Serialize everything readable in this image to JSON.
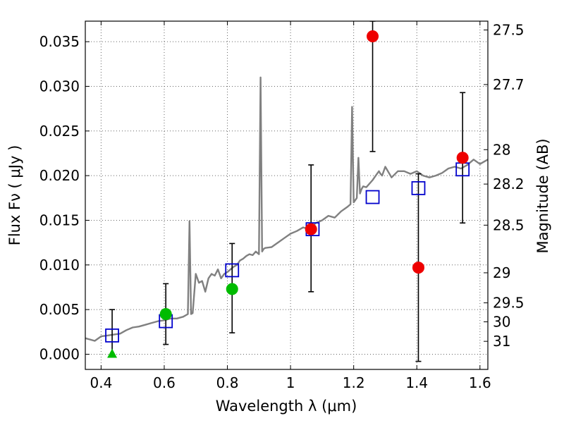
{
  "chart_data": {
    "type": "scatter",
    "title": "",
    "xlabel": "Wavelength  λ (μm)",
    "ylabel": "Flux  Fν  ( μJy )",
    "y2label": "Magnitude (AB)",
    "xlim": [
      0.35,
      1.625
    ],
    "ylim": [
      -0.0017,
      0.0373
    ],
    "grid": true,
    "x_ticks": [
      0.4,
      0.6,
      0.8,
      1.0,
      1.2,
      1.4,
      1.6
    ],
    "x_tick_labels": [
      "0.4",
      "0.6",
      "0.8",
      "1",
      "1.2",
      "1.4",
      "1.6"
    ],
    "y_ticks": [
      0.0,
      0.005,
      0.01,
      0.015,
      0.02,
      0.025,
      0.03,
      0.035
    ],
    "y_tick_labels": [
      "0.000",
      "0.005",
      "0.010",
      "0.015",
      "0.020",
      "0.025",
      "0.030",
      "0.035"
    ],
    "y2_ticks": [
      27.5,
      27.7,
      28,
      28.2,
      28.5,
      29,
      29.5,
      30,
      31
    ],
    "y2_tick_labels": [
      "27.5",
      "27.7",
      "28",
      "28.2",
      "28.5",
      "29",
      "29.5",
      "30",
      "31"
    ],
    "colors": {
      "sed": "#808080",
      "model": "#0000cc",
      "red": "#ee0000",
      "green": "#00bb00",
      "errorbar": "#000000",
      "grid": "#666666"
    },
    "series": [
      {
        "kind": "sed_line",
        "x": [
          0.35,
          0.38,
          0.4,
          0.42,
          0.44,
          0.46,
          0.48,
          0.5,
          0.52,
          0.54,
          0.56,
          0.58,
          0.6,
          0.62,
          0.64,
          0.66,
          0.675,
          0.68,
          0.685,
          0.69,
          0.7,
          0.71,
          0.72,
          0.73,
          0.74,
          0.75,
          0.76,
          0.77,
          0.78,
          0.79,
          0.8,
          0.81,
          0.82,
          0.83,
          0.84,
          0.85,
          0.86,
          0.87,
          0.88,
          0.89,
          0.9,
          0.905,
          0.91,
          0.915,
          0.92,
          0.94,
          0.96,
          0.98,
          1.0,
          1.02,
          1.04,
          1.06,
          1.08,
          1.1,
          1.12,
          1.14,
          1.16,
          1.18,
          1.19,
          1.195,
          1.2,
          1.21,
          1.215,
          1.22,
          1.225,
          1.23,
          1.24,
          1.26,
          1.27,
          1.28,
          1.285,
          1.29,
          1.3,
          1.32,
          1.34,
          1.36,
          1.38,
          1.4,
          1.42,
          1.44,
          1.46,
          1.48,
          1.5,
          1.52,
          1.54,
          1.56,
          1.58,
          1.6,
          1.61,
          1.625
        ],
        "y": [
          0.0018,
          0.0015,
          0.002,
          0.0021,
          0.0022,
          0.0023,
          0.0027,
          0.003,
          0.0031,
          0.0033,
          0.0035,
          0.0037,
          0.0038,
          0.004,
          0.004,
          0.0042,
          0.0045,
          0.0149,
          0.0045,
          0.0046,
          0.009,
          0.008,
          0.0082,
          0.007,
          0.0085,
          0.009,
          0.0088,
          0.0095,
          0.0085,
          0.009,
          0.0092,
          0.0095,
          0.0098,
          0.01,
          0.0105,
          0.0107,
          0.011,
          0.0112,
          0.0111,
          0.0115,
          0.0112,
          0.031,
          0.0115,
          0.0118,
          0.0119,
          0.012,
          0.0125,
          0.013,
          0.0135,
          0.0138,
          0.0142,
          0.014,
          0.0147,
          0.015,
          0.0155,
          0.0153,
          0.016,
          0.0165,
          0.0168,
          0.0277,
          0.017,
          0.0175,
          0.022,
          0.018,
          0.0185,
          0.0188,
          0.0187,
          0.0195,
          0.02,
          0.0205,
          0.0202,
          0.02,
          0.021,
          0.0198,
          0.0205,
          0.0205,
          0.0202,
          0.0205,
          0.02,
          0.0198,
          0.02,
          0.0203,
          0.0208,
          0.021,
          0.0208,
          0.0212,
          0.0218,
          0.0213,
          0.0215,
          0.0218
        ]
      },
      {
        "kind": "model_squares",
        "x": [
          0.435,
          0.605,
          0.815,
          1.07,
          1.26,
          1.405,
          1.545
        ],
        "y": [
          0.0021,
          0.0037,
          0.0094,
          0.014,
          0.0176,
          0.0186,
          0.0207
        ]
      },
      {
        "kind": "observed_points",
        "x": [
          0.605,
          0.815,
          1.065,
          1.26,
          1.405,
          1.545
        ],
        "y": [
          0.0045,
          0.0073,
          0.014,
          0.0356,
          0.0097,
          0.022
        ],
        "yerr_low": [
          0.0011,
          0.0024,
          0.007,
          0.0227,
          -0.0008,
          0.0147
        ],
        "yerr_high": [
          0.0079,
          0.0124,
          0.0212,
          0.0373,
          0.0202,
          0.0293
        ],
        "colors": [
          "green",
          "green",
          "red",
          "red",
          "red",
          "red"
        ]
      },
      {
        "kind": "upper_limit_triangle",
        "x": [
          0.435
        ],
        "y": [
          0.0
        ],
        "yerr_high": [
          0.005
        ],
        "color": "green"
      }
    ]
  }
}
